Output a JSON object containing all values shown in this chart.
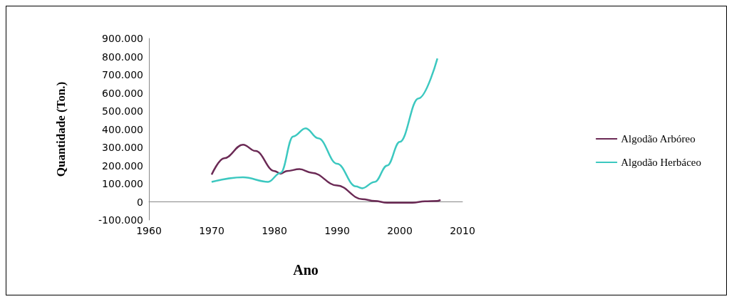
{
  "chart_data": {
    "type": "line",
    "xlabel": "Ano",
    "ylabel": "Quantidade (Ton.)",
    "xlim": [
      1960,
      2010
    ],
    "xticks": [
      1960,
      1970,
      1980,
      1990,
      2000,
      2010
    ],
    "ylim": [
      -100000,
      900000
    ],
    "yticks": [
      {
        "value": -100000,
        "label": "-100.000"
      },
      {
        "value": 0,
        "label": "0"
      },
      {
        "value": 100000,
        "label": "100.000"
      },
      {
        "value": 200000,
        "label": "200.000"
      },
      {
        "value": 300000,
        "label": "300.000"
      },
      {
        "value": 400000,
        "label": "400.000"
      },
      {
        "value": 500000,
        "label": "500.000"
      },
      {
        "value": 600000,
        "label": "600.000"
      },
      {
        "value": 700000,
        "label": "700.000"
      },
      {
        "value": 800000,
        "label": "800.000"
      },
      {
        "value": 900000,
        "label": "900.000"
      }
    ],
    "grid": false,
    "legend": "right",
    "marker": "none",
    "line_style": "solid",
    "series": [
      {
        "name": "Algodão Arbóreo",
        "color": "#6b2a55",
        "x": [
          1970,
          1972,
          1975,
          1977,
          1980,
          1981,
          1982,
          1984,
          1986,
          1990,
          1994,
          1996,
          1998,
          2000,
          2002,
          2004,
          2006,
          2006.5
        ],
        "values": [
          150000,
          240000,
          315000,
          280000,
          170000,
          155000,
          170000,
          180000,
          160000,
          90000,
          15000,
          5000,
          -5000,
          -5000,
          -5000,
          3000,
          5000,
          10000
        ]
      },
      {
        "name": "Algodão Herbáceo",
        "color": "#3cc8c0",
        "x": [
          1970,
          1975,
          1979,
          1981,
          1983,
          1985,
          1987,
          1990,
          1993,
          1994,
          1996,
          1998,
          2000,
          2003,
          2006
        ],
        "values": [
          110000,
          135000,
          110000,
          160000,
          360000,
          405000,
          350000,
          210000,
          85000,
          75000,
          110000,
          200000,
          330000,
          570000,
          790000
        ]
      }
    ]
  }
}
